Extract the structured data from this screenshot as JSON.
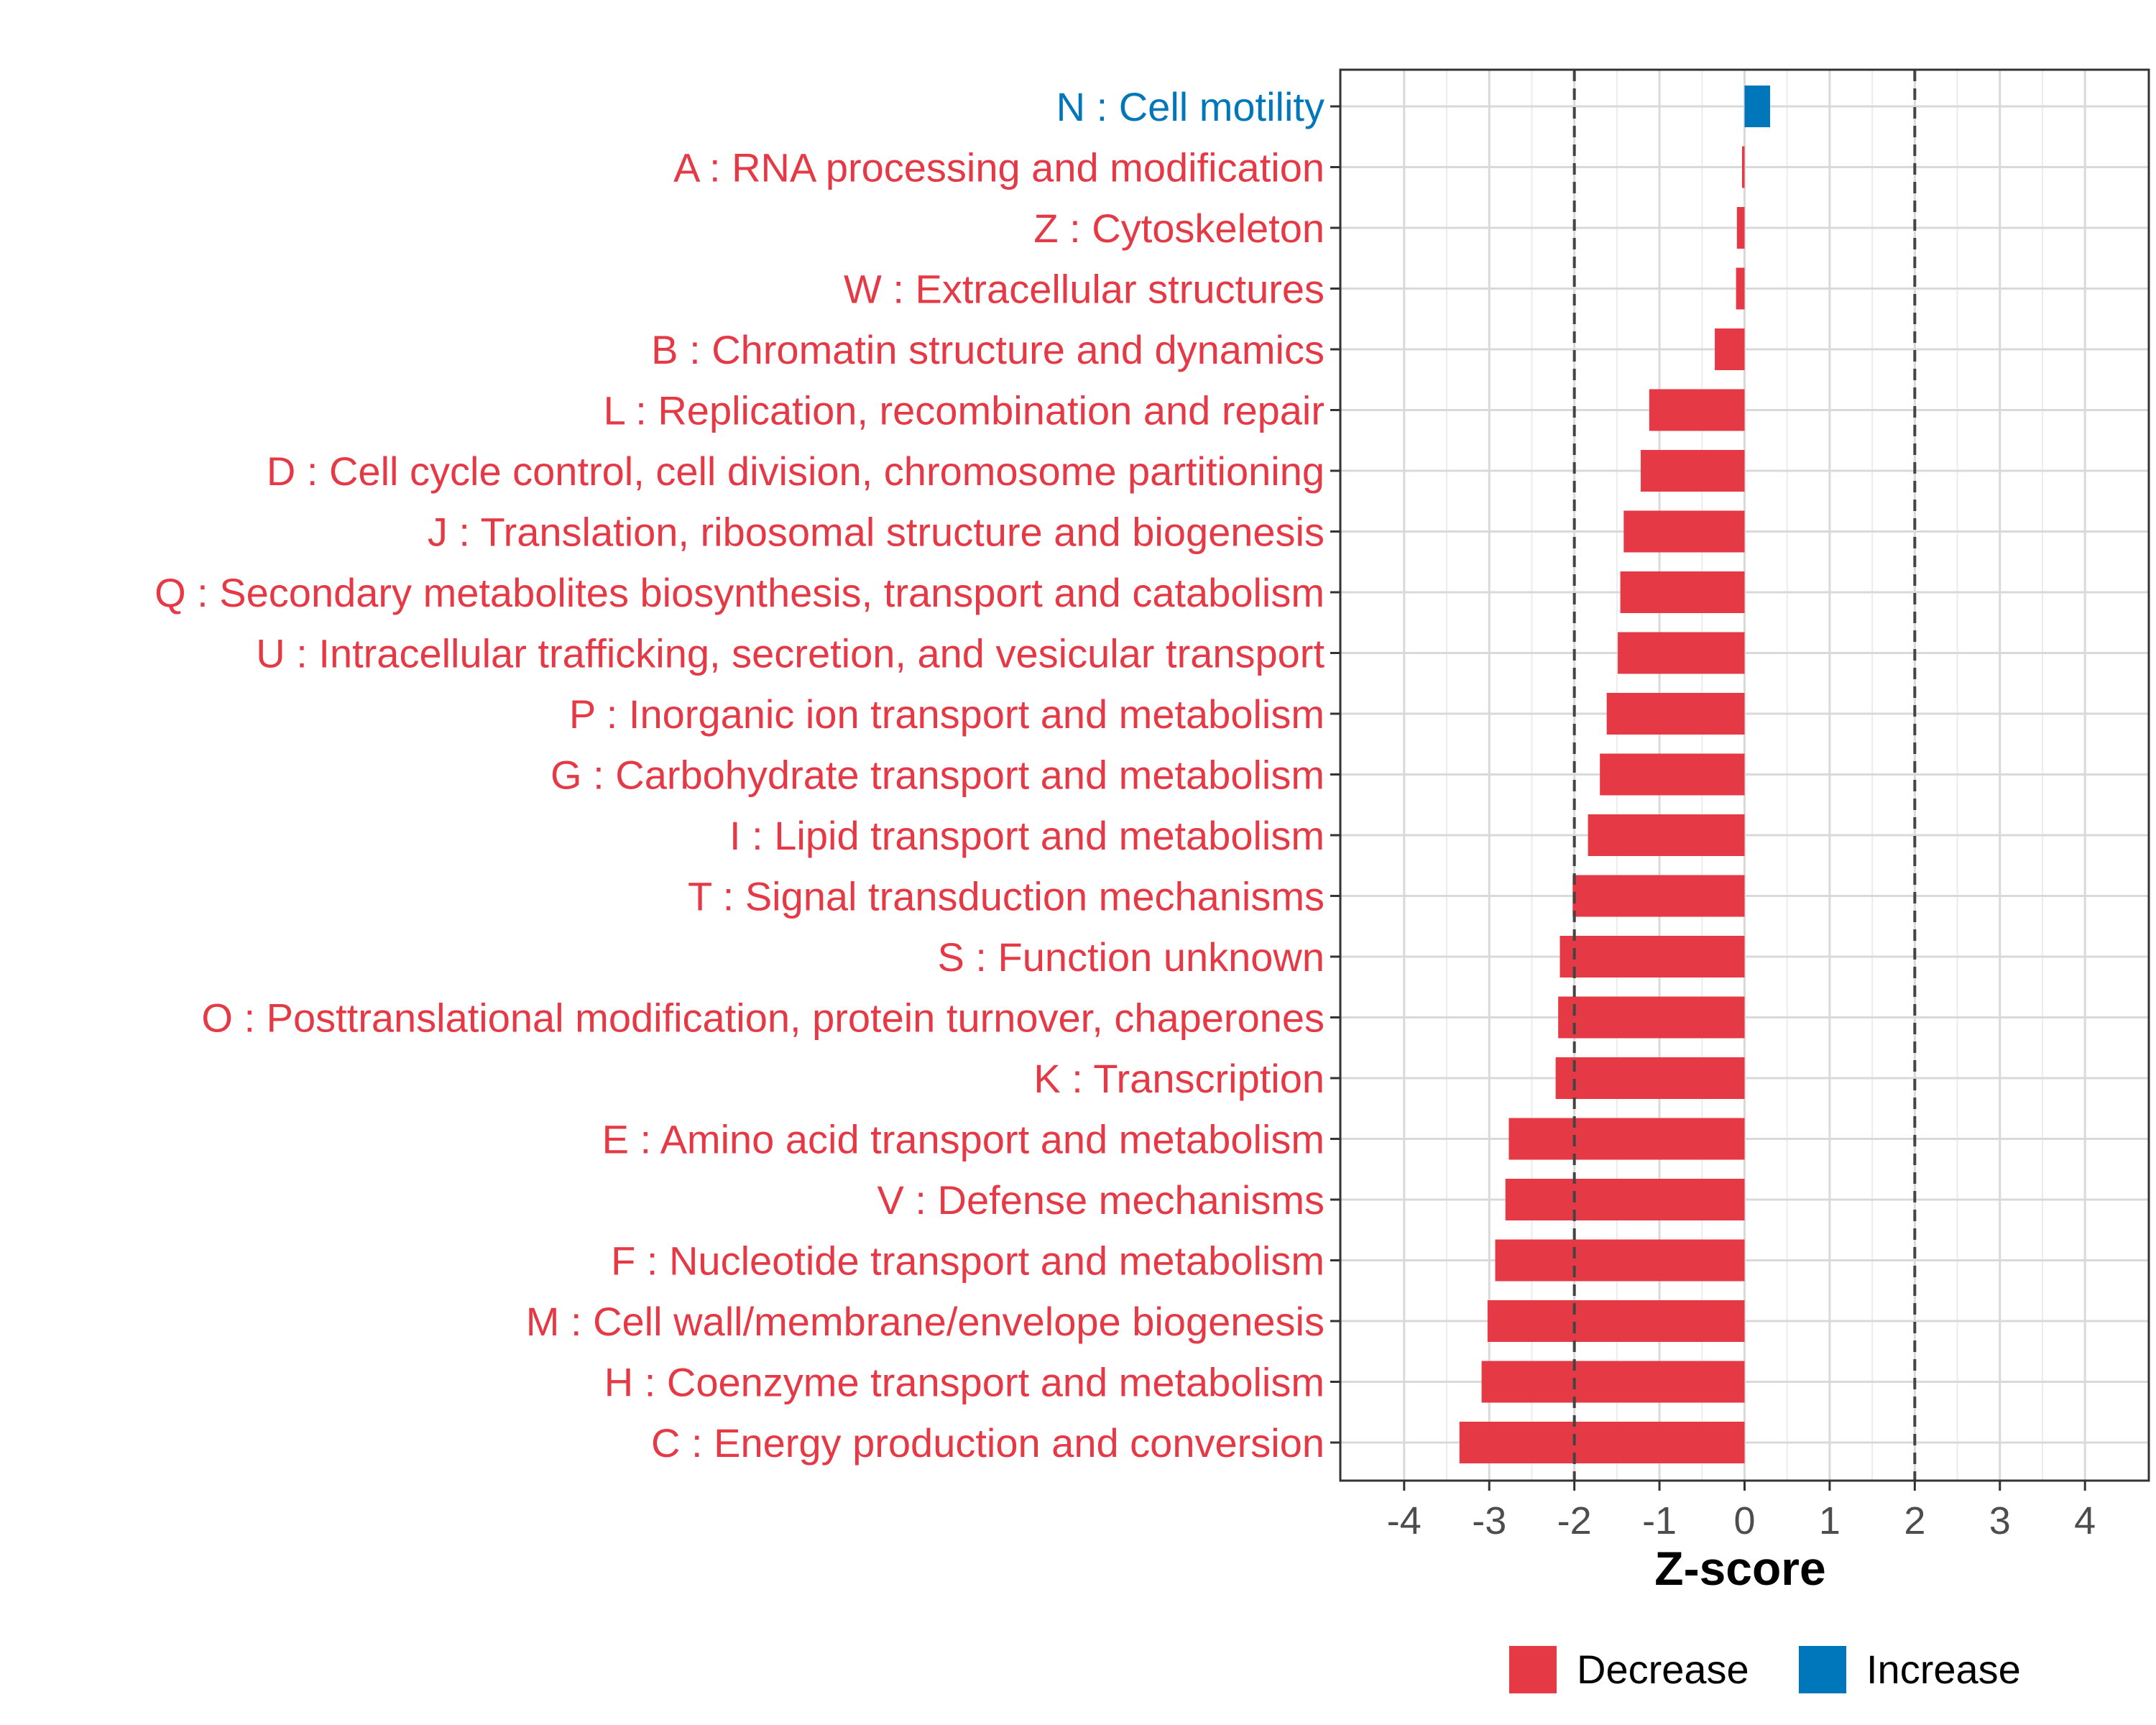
{
  "chart_data": {
    "type": "bar",
    "orientation": "horizontal",
    "xlabel": "Z-score",
    "xlim": [
      -4.75,
      4.75
    ],
    "xticks": [
      -4,
      -3,
      -2,
      -1,
      0,
      1,
      2,
      3,
      4
    ],
    "xtick_labels": [
      "-4",
      "-3",
      "-2",
      "-1",
      "0",
      "1",
      "2",
      "3",
      "4"
    ],
    "reference_lines": [
      -2,
      2
    ],
    "categories": [
      "N : Cell motility",
      "A : RNA processing and modification",
      "Z : Cytoskeleton",
      "W : Extracellular structures",
      "B : Chromatin structure and dynamics",
      "L : Replication, recombination and repair",
      "D : Cell cycle control, cell division, chromosome partitioning",
      "J : Translation, ribosomal structure and biogenesis",
      "Q : Secondary metabolites biosynthesis, transport and catabolism",
      "U : Intracellular trafficking, secretion, and vesicular transport",
      "P : Inorganic ion transport and metabolism",
      "G : Carbohydrate transport and metabolism",
      "I : Lipid transport and metabolism",
      "T : Signal transduction mechanisms",
      "S : Function unknown",
      "O : Posttranslational modification, protein turnover, chaperones",
      "K : Transcription",
      "E : Amino acid transport and metabolism",
      "V : Defense mechanisms",
      "F : Nucleotide transport and metabolism",
      "M : Cell wall/membrane/envelope biogenesis",
      "H : Coenzyme transport and metabolism",
      "C : Energy production and conversion"
    ],
    "values": [
      0.3,
      -0.03,
      -0.09,
      -0.1,
      -0.35,
      -1.12,
      -1.22,
      -1.42,
      -1.46,
      -1.49,
      -1.62,
      -1.7,
      -1.84,
      -2.02,
      -2.17,
      -2.19,
      -2.22,
      -2.77,
      -2.81,
      -2.93,
      -3.02,
      -3.09,
      -3.35
    ],
    "directions": [
      "Increase",
      "Decrease",
      "Decrease",
      "Decrease",
      "Decrease",
      "Decrease",
      "Decrease",
      "Decrease",
      "Decrease",
      "Decrease",
      "Decrease",
      "Decrease",
      "Decrease",
      "Decrease",
      "Decrease",
      "Decrease",
      "Decrease",
      "Decrease",
      "Decrease",
      "Decrease",
      "Decrease",
      "Decrease",
      "Decrease"
    ],
    "colors": {
      "Decrease": "#E63946",
      "Increase": "#0077BB"
    },
    "legend": {
      "position": "bottom",
      "entries": [
        {
          "label": "Decrease",
          "color": "#E63946"
        },
        {
          "label": "Increase",
          "color": "#0077BB"
        }
      ]
    },
    "grid": true
  }
}
